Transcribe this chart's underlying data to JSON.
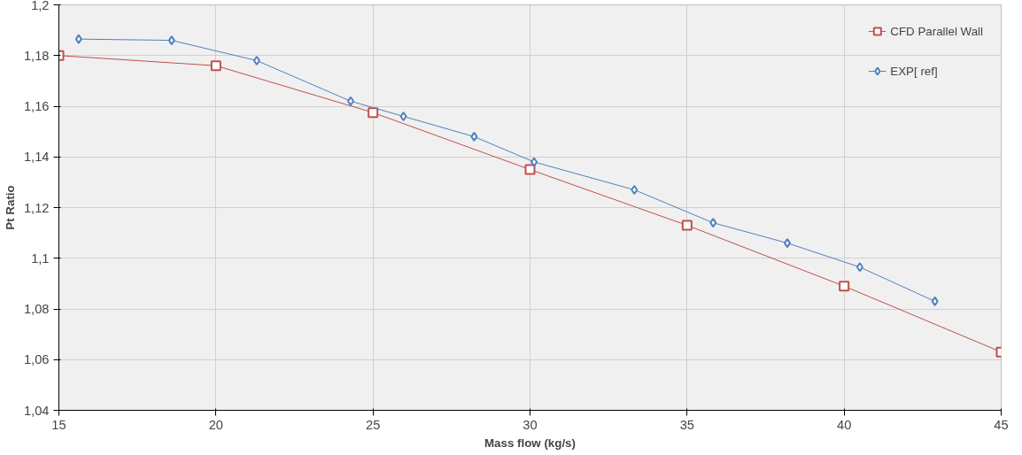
{
  "chart_data": {
    "type": "line",
    "xlabel": "Mass flow (kg/s)",
    "ylabel": "Pt Ratio",
    "series": [
      {
        "name": "CFD Parallel Wall",
        "color": "#c0504d",
        "marker": "square",
        "x": [
          15,
          20,
          25,
          30,
          35,
          40,
          45
        ],
        "values": [
          1.18,
          1.176,
          1.1575,
          1.135,
          1.113,
          1.089,
          1.063
        ]
      },
      {
        "name": "EXP[ ref]",
        "color": "#4f81bd",
        "marker": "diamond",
        "x": [
          15.63,
          18.59,
          21.3,
          24.29,
          25.97,
          28.22,
          30.13,
          33.32,
          35.83,
          38.19,
          40.5,
          42.89
        ],
        "values": [
          1.1865,
          1.186,
          1.178,
          1.162,
          1.156,
          1.148,
          1.138,
          1.127,
          1.114,
          1.106,
          1.0965,
          1.083
        ]
      }
    ],
    "xlim": [
      15,
      45
    ],
    "xticks": [
      15,
      20,
      25,
      30,
      35,
      40,
      45
    ],
    "ylim": [
      1.04,
      1.2
    ],
    "yticks": [
      {
        "value": 1.04,
        "label": "1,04"
      },
      {
        "value": 1.06,
        "label": "1,06"
      },
      {
        "value": 1.08,
        "label": "1,08"
      },
      {
        "value": 1.1,
        "label": "1,1"
      },
      {
        "value": 1.12,
        "label": "1,12"
      },
      {
        "value": 1.14,
        "label": "1,14"
      },
      {
        "value": 1.16,
        "label": "1,16"
      },
      {
        "value": 1.18,
        "label": "1,18"
      },
      {
        "value": 1.2,
        "label": "1,2"
      }
    ],
    "grid": true,
    "legend": "top right"
  }
}
